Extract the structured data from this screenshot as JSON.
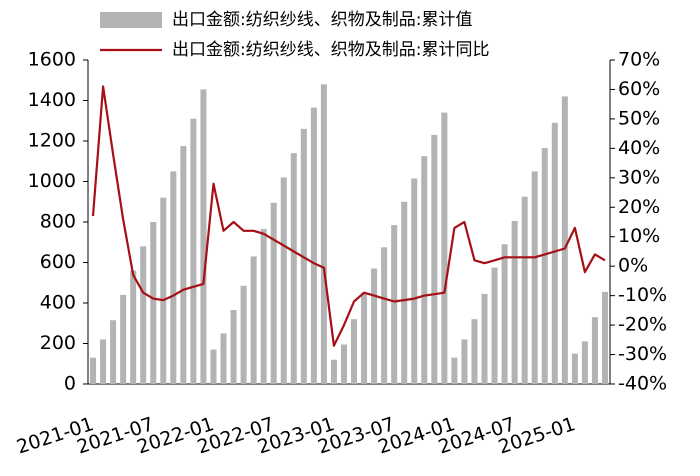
{
  "chart_data": {
    "type": "bar_line",
    "categories": [
      "2021-01",
      null,
      null,
      null,
      null,
      null,
      "2021-07",
      null,
      null,
      null,
      null,
      null,
      "2022-01",
      null,
      null,
      null,
      null,
      null,
      "2022-07",
      null,
      null,
      null,
      null,
      null,
      "2023-01",
      null,
      null,
      null,
      null,
      null,
      "2023-07",
      null,
      null,
      null,
      null,
      null,
      "2024-01",
      null,
      null,
      null,
      null,
      null,
      "2024-07",
      null,
      null,
      null,
      null,
      null,
      "2025-01",
      null,
      null,
      null
    ],
    "series": [
      {
        "name": "出口金额:纺织纱线、织物及制品:累计值",
        "type": "bar",
        "color": "#b3b3b3",
        "values": [
          130,
          220,
          315,
          440,
          560,
          680,
          800,
          920,
          1050,
          1175,
          1310,
          1455,
          170,
          250,
          365,
          485,
          630,
          765,
          895,
          1020,
          1140,
          1260,
          1365,
          1480,
          120,
          195,
          320,
          450,
          570,
          675,
          785,
          900,
          1015,
          1125,
          1230,
          1340,
          130,
          220,
          320,
          445,
          575,
          690,
          805,
          925,
          1050,
          1165,
          1290,
          1420,
          150,
          210,
          330,
          455
        ]
      },
      {
        "name": "出口金额:纺织纱线、织物及制品:累计同比",
        "type": "line",
        "axis": "y2",
        "color": "#a50f15",
        "values": [
          17,
          61,
          38,
          16,
          -3,
          -9,
          -11,
          -11.5,
          -10,
          -8,
          -7,
          -6,
          28,
          12,
          15,
          12,
          12,
          11,
          9,
          7,
          5,
          3,
          1,
          -0.5,
          -27,
          -20,
          -12,
          -9,
          -10,
          -11,
          -12,
          -11.5,
          -11,
          -10,
          -9.5,
          -9,
          13,
          15,
          2,
          1,
          2,
          3,
          3,
          3,
          3,
          4,
          5,
          6,
          13,
          -2,
          4,
          2
        ]
      }
    ],
    "ylim": [
      0,
      1600
    ],
    "yticks": [
      0,
      200,
      400,
      600,
      800,
      1000,
      1200,
      1400,
      1600
    ],
    "y2lim": [
      -40,
      70
    ],
    "y2ticks": [
      {
        "value": -40,
        "label": "-40%"
      },
      {
        "value": -30,
        "label": "-30%"
      },
      {
        "value": -20,
        "label": "-20%"
      },
      {
        "value": -10,
        "label": "-10%"
      },
      {
        "value": 0,
        "label": "0%"
      },
      {
        "value": 10,
        "label": "10%"
      },
      {
        "value": 20,
        "label": "20%"
      },
      {
        "value": 30,
        "label": "30%"
      },
      {
        "value": 40,
        "label": "40%"
      },
      {
        "value": 50,
        "label": "50%"
      },
      {
        "value": 60,
        "label": "60%"
      },
      {
        "value": 70,
        "label": "70%"
      }
    ],
    "grid": false
  }
}
